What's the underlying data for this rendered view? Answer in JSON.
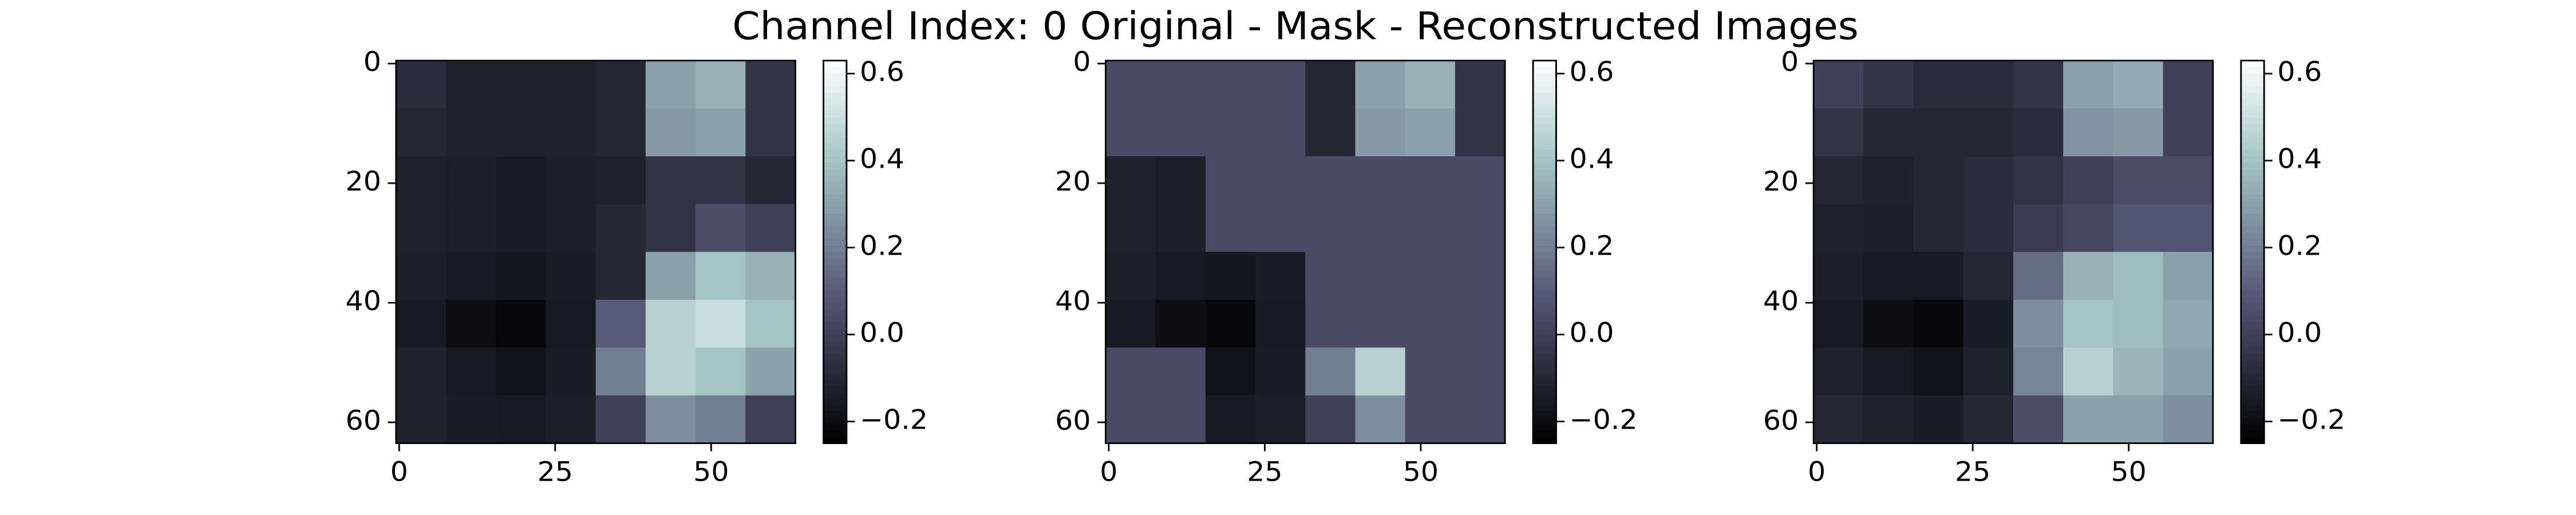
{
  "title": "Channel Index: 0 Original - Mask - Reconstructed Images",
  "chart_data": [
    {
      "type": "heatmap",
      "colormap": "bone",
      "xlim": [
        -0.5,
        63.5
      ],
      "ylim": [
        63.5,
        -0.5
      ],
      "xticks": [
        0,
        25,
        50
      ],
      "yticks": [
        0,
        20,
        40,
        60
      ],
      "clim": [
        -0.25,
        0.63
      ],
      "cticks": [
        {
          "value": -0.2,
          "label": "−0.2"
        },
        {
          "value": 0,
          "label": "0.0"
        },
        0.2,
        0.4,
        0.6
      ],
      "values": [
        [
          -0.08,
          -0.12,
          -0.12,
          -0.12,
          -0.1,
          0.3,
          0.35,
          -0.05
        ],
        [
          -0.1,
          -0.12,
          -0.12,
          -0.12,
          -0.1,
          0.28,
          0.3,
          -0.05
        ],
        [
          -0.12,
          -0.13,
          -0.14,
          -0.13,
          -0.12,
          -0.05,
          -0.05,
          -0.1
        ],
        [
          -0.12,
          -0.13,
          -0.14,
          -0.13,
          -0.1,
          -0.05,
          0.05,
          0.0
        ],
        [
          -0.13,
          -0.15,
          -0.16,
          -0.14,
          -0.1,
          0.3,
          0.4,
          0.35
        ],
        [
          -0.15,
          -0.2,
          -0.22,
          -0.15,
          0.1,
          0.45,
          0.5,
          0.4
        ],
        [
          -0.12,
          -0.15,
          -0.18,
          -0.14,
          0.2,
          0.45,
          0.4,
          0.3
        ],
        [
          -0.12,
          -0.14,
          -0.15,
          -0.13,
          0.0,
          0.25,
          0.2,
          0.0
        ]
      ]
    },
    {
      "type": "heatmap",
      "colormap": "bone",
      "xlim": [
        -0.5,
        63.5
      ],
      "ylim": [
        63.5,
        -0.5
      ],
      "xticks": [
        0,
        25,
        50
      ],
      "yticks": [
        0,
        20,
        40,
        60
      ],
      "clim": [
        -0.25,
        0.63
      ],
      "cticks": [
        {
          "value": -0.2,
          "label": "−0.2"
        },
        {
          "value": 0,
          "label": "0.0"
        },
        0.2,
        0.4,
        0.6
      ],
      "values": [
        [
          0.04,
          0.04,
          0.04,
          0.04,
          -0.1,
          0.3,
          0.35,
          -0.05
        ],
        [
          0.04,
          0.04,
          0.04,
          0.04,
          -0.1,
          0.28,
          0.3,
          -0.05
        ],
        [
          -0.12,
          -0.13,
          0.04,
          0.04,
          0.04,
          0.04,
          0.04,
          0.04
        ],
        [
          -0.12,
          -0.13,
          0.04,
          0.04,
          0.04,
          0.04,
          0.04,
          0.04
        ],
        [
          -0.13,
          -0.15,
          -0.16,
          -0.14,
          0.04,
          0.04,
          0.04,
          0.04
        ],
        [
          -0.15,
          -0.2,
          -0.22,
          -0.15,
          0.04,
          0.04,
          0.04,
          0.04
        ],
        [
          0.04,
          0.04,
          -0.18,
          -0.14,
          0.2,
          0.45,
          0.04,
          0.04
        ],
        [
          0.04,
          0.04,
          -0.15,
          -0.13,
          0.0,
          0.25,
          0.04,
          0.04
        ]
      ]
    },
    {
      "type": "heatmap",
      "colormap": "bone",
      "xlim": [
        -0.5,
        63.5
      ],
      "ylim": [
        63.5,
        -0.5
      ],
      "xticks": [
        0,
        25,
        50
      ],
      "yticks": [
        0,
        20,
        40,
        60
      ],
      "clim": [
        -0.25,
        0.63
      ],
      "cticks": [
        {
          "value": -0.2,
          "label": "−0.2"
        },
        {
          "value": 0,
          "label": "0.0"
        },
        0.2,
        0.4,
        0.6
      ],
      "values": [
        [
          0.0,
          -0.05,
          -0.08,
          -0.08,
          -0.05,
          0.3,
          0.33,
          0.0
        ],
        [
          -0.05,
          -0.1,
          -0.1,
          -0.1,
          -0.08,
          0.26,
          0.28,
          0.0
        ],
        [
          -0.1,
          -0.12,
          -0.1,
          -0.08,
          -0.05,
          0.0,
          0.05,
          0.05
        ],
        [
          -0.12,
          -0.13,
          -0.1,
          -0.08,
          -0.02,
          0.02,
          0.08,
          0.08
        ],
        [
          -0.13,
          -0.15,
          -0.15,
          -0.1,
          0.15,
          0.35,
          0.38,
          0.3
        ],
        [
          -0.15,
          -0.2,
          -0.22,
          -0.14,
          0.25,
          0.4,
          0.38,
          0.32
        ],
        [
          -0.12,
          -0.15,
          -0.18,
          -0.12,
          0.22,
          0.45,
          0.36,
          0.3
        ],
        [
          -0.1,
          -0.12,
          -0.14,
          -0.1,
          0.05,
          0.3,
          0.3,
          0.25
        ]
      ]
    }
  ]
}
